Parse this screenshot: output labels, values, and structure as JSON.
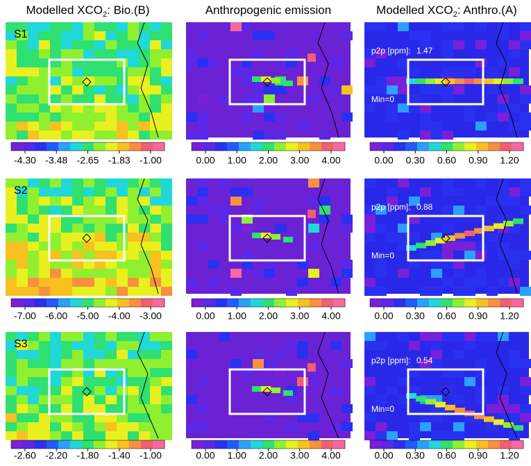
{
  "columns": [
    {
      "title": "Modelled XCO",
      "title_sub": "2",
      "title_end": ": Bio.(B)"
    },
    {
      "title": "Anthropogenic emission"
    },
    {
      "title": "Modelled XCO",
      "title_sub": "2",
      "title_end": ": Anthro.(A)"
    }
  ],
  "rows": [
    {
      "label": "S1",
      "p2p_label": "p2p [ppm]:",
      "p2p_value": "1.47",
      "min_label": "Min=0",
      "colorbars": [
        [
          "-4.30",
          "-3.48",
          "-2.65",
          "-1.83",
          "-1.00"
        ],
        [
          "0.00",
          "1.00",
          "2.00",
          "3.00",
          "4.00"
        ],
        [
          "0.00",
          "0.30",
          "0.60",
          "0.90",
          "1.20"
        ]
      ]
    },
    {
      "label": "S2",
      "p2p_label": "p2p [ppm]:",
      "p2p_value": "0.88",
      "min_label": "Min=0",
      "colorbars": [
        [
          "-7.00",
          "-6.00",
          "-5.00",
          "-4.00",
          "-3.00"
        ],
        [
          "0.00",
          "1.00",
          "2.00",
          "3.00",
          "4.00"
        ],
        [
          "0.00",
          "0.30",
          "0.60",
          "0.90",
          "1.20"
        ]
      ]
    },
    {
      "label": "S3",
      "p2p_label": "p2p [ppm]:",
      "p2p_value": "0.54",
      "min_label": "Min=0",
      "colorbars": [
        [
          "-2.60",
          "-2.20",
          "-1.80",
          "-1.40",
          "-1.00"
        ],
        [
          "0.00",
          "1.00",
          "2.00",
          "3.00",
          "4.00"
        ],
        [
          "0.00",
          "0.30",
          "0.60",
          "0.90",
          "1.20"
        ]
      ]
    }
  ]
}
